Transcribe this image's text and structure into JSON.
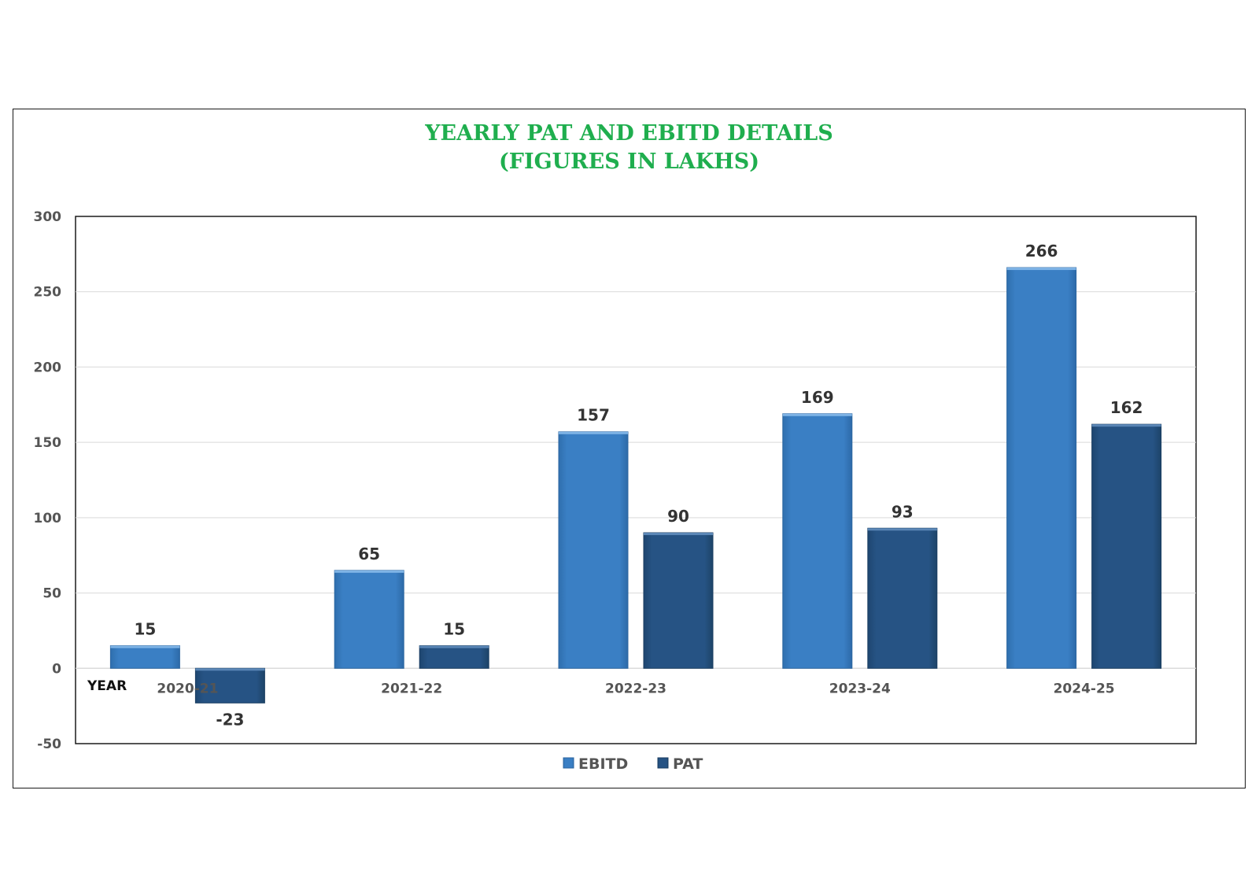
{
  "chart_data": {
    "type": "bar",
    "title": "YEARLY PAT AND EBITD DETAILS",
    "subtitle": "(FIGURES IN LAKHS)",
    "xlabel": "YEAR",
    "ylabel": "",
    "categories": [
      "2020-21",
      "2021-22",
      "2022-23",
      "2023-24",
      "2024-25"
    ],
    "series": [
      {
        "name": "EBITD",
        "values": [
          15,
          65,
          157,
          169,
          266
        ],
        "color": "#3a7fc4"
      },
      {
        "name": "PAT",
        "values": [
          -23,
          15,
          90,
          93,
          162
        ],
        "color": "#265384"
      }
    ],
    "ylim": [
      -50,
      300
    ],
    "yticks": [
      "300",
      "250",
      "200",
      "150",
      "100",
      "50",
      "0",
      "-50"
    ],
    "grid": true,
    "legend": "bottom-center"
  }
}
